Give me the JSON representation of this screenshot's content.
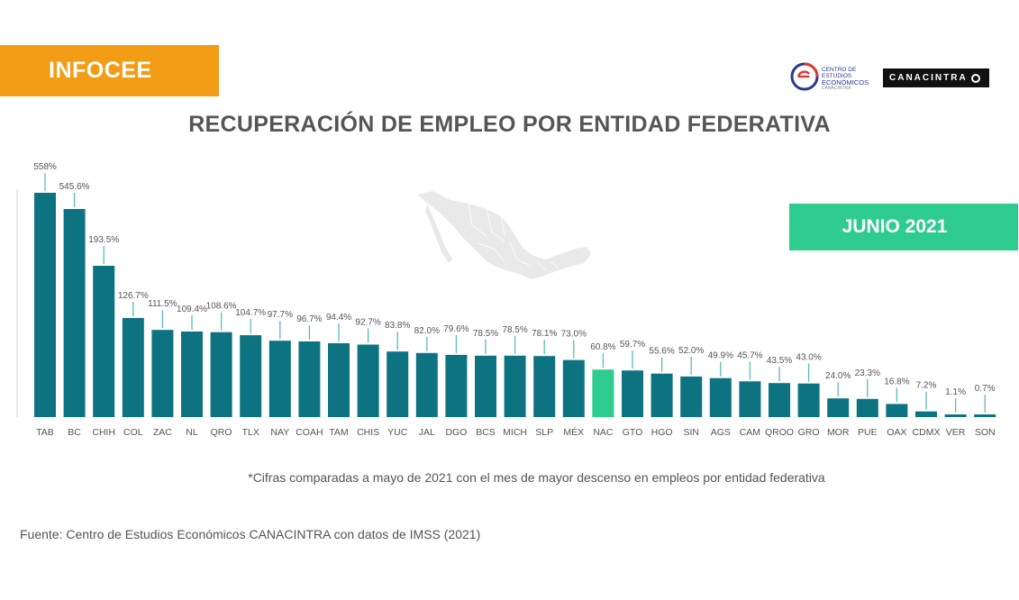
{
  "header": {
    "badge": "INFOCEE",
    "logo_cee_lines": [
      "CENTRO DE ESTUDIOS",
      "ECONÓMICOS",
      "CANACINTRA"
    ],
    "logo_canacintra": "CANACINTRA",
    "period_badge": "JUNIO 2021"
  },
  "footnote": "*Cifras comparadas a mayo de 2021 con el mes de mayor descenso en empleos por entidad federativa",
  "source": "Fuente: Centro de Estudios Económicos CANACINTRA con datos de IMSS (2021)",
  "colors": {
    "bar": "#0e7381",
    "highlight_bar": "#2ecc8f",
    "badge_orange": "#f39c16",
    "badge_green": "#2ecc8f",
    "leader_line": "#5fb8c2",
    "map_fill": "#e9e9e9"
  },
  "chart_data": {
    "type": "bar",
    "title": "RECUPERACIÓN DE EMPLEO POR ENTIDAD FEDERATIVA",
    "xlabel": "",
    "ylabel": "",
    "ylim": [
      0,
      600
    ],
    "highlight_category": "NAC",
    "categories": [
      "TAB",
      "BC",
      "CHIH",
      "COL",
      "ZAC",
      "NL",
      "QRO",
      "TLX",
      "NAY",
      "COAH",
      "TAM",
      "CHIS",
      "YUC",
      "JAL",
      "DGO",
      "BCS",
      "MICH",
      "SLP",
      "MÉX",
      "NAC",
      "GTO",
      "HGO",
      "SIN",
      "AGS",
      "CAM",
      "QROO",
      "GRO",
      "MOR",
      "PUE",
      "OAX",
      "CDMX",
      "VER",
      "SON"
    ],
    "values": [
      558,
      545.6,
      193.5,
      126.7,
      111.5,
      109.4,
      108.6,
      104.7,
      97.7,
      96.7,
      94.4,
      92.7,
      83.8,
      82.0,
      79.6,
      78.5,
      78.5,
      78.1,
      73.0,
      60.8,
      59.7,
      55.6,
      52.0,
      49.9,
      45.7,
      43.5,
      43.0,
      24.0,
      23.3,
      16.8,
      7.2,
      1.1,
      0.7
    ],
    "value_labels": [
      "558%",
      "545.6%",
      "193.5%",
      "126.7%",
      "111.5%",
      "109.4%",
      "108.6%",
      "104.7%",
      "97.7%",
      "96.7%",
      "94.4%",
      "92.7%",
      "83.8%",
      "82.0%",
      "79.6%",
      "78.5%",
      "78.5%",
      "78.1%",
      "73.0%",
      "60.8%",
      "59.7%",
      "55.6%",
      "52.0%",
      "49.9%",
      "45.7%",
      "43.5%",
      "43.0%",
      "24.0%",
      "23.3%",
      "16.8%",
      "7.2%",
      "1.1%",
      "0.7%"
    ]
  }
}
